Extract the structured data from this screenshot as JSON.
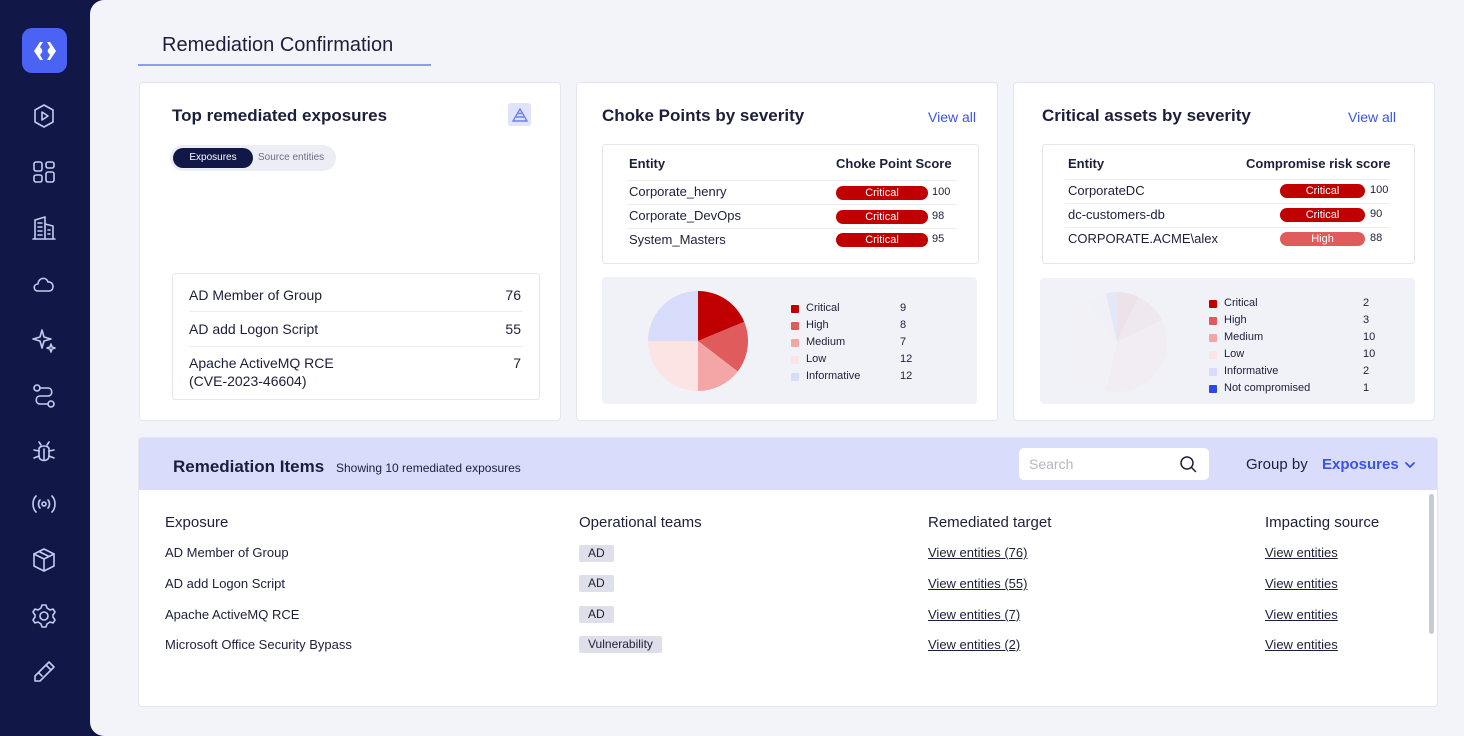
{
  "page": {
    "title": "Remediation Confirmation"
  },
  "sidebar": {
    "items": [
      {
        "icon": "play-circle-icon"
      },
      {
        "icon": "dashboard-grid-icon"
      },
      {
        "icon": "building-icon"
      },
      {
        "icon": "cloud-icon"
      },
      {
        "icon": "sparkle-icon"
      },
      {
        "icon": "route-icon"
      },
      {
        "icon": "bug-icon"
      },
      {
        "icon": "broadcast-icon"
      },
      {
        "icon": "box-icon"
      },
      {
        "icon": "gear-icon"
      },
      {
        "icon": "pen-icon"
      }
    ]
  },
  "top_exposures": {
    "title": "Top remediated exposures",
    "toggle": {
      "active": "Exposures",
      "inactive": "Source entities"
    },
    "items": [
      {
        "name": "AD Member of Group",
        "count": "76"
      },
      {
        "name": "AD add Logon Script",
        "count": "55"
      },
      {
        "name": "Apache ActiveMQ RCE",
        "name2": "(CVE-2023-46604)",
        "count": "7"
      }
    ]
  },
  "choke_points": {
    "title": "Choke Points by severity",
    "view_all": "View all",
    "col_entity": "Entity",
    "col_score": "Choke Point Score",
    "rows": [
      {
        "entity": "Corporate_henry",
        "severity": "Critical",
        "score": "100"
      },
      {
        "entity": "Corporate_DevOps",
        "severity": "Critical",
        "score": "98"
      },
      {
        "entity": "System_Masters",
        "severity": "Critical",
        "score": "95"
      }
    ]
  },
  "critical_assets": {
    "title": "Critical assets by severity",
    "view_all": "View all",
    "col_entity": "Entity",
    "col_score": "Compromise risk score",
    "rows": [
      {
        "entity": "CorporateDC",
        "severity": "Critical",
        "score": "100"
      },
      {
        "entity": "dc-customers-db",
        "severity": "Critical",
        "score": "90"
      },
      {
        "entity": "CORPORATE.ACME\\alex",
        "severity": "High",
        "score": "88"
      }
    ]
  },
  "colors": {
    "critical": "#c00000",
    "high": "#e05c5c",
    "medium": "#f4a6a6",
    "low": "#fde4e4",
    "informative": "#d8dcfb",
    "not_compromised": "#2c48e8"
  },
  "chart_data": [
    {
      "type": "pie",
      "series": [
        {
          "name": "Critical",
          "value": 9
        },
        {
          "name": "High",
          "value": 8
        },
        {
          "name": "Medium",
          "value": 7
        },
        {
          "name": "Low",
          "value": 12
        },
        {
          "name": "Informative",
          "value": 12
        }
      ]
    },
    {
      "type": "pie",
      "series": [
        {
          "name": "Critical",
          "value": 2
        },
        {
          "name": "High",
          "value": 3
        },
        {
          "name": "Medium",
          "value": 10
        },
        {
          "name": "Low",
          "value": 10
        },
        {
          "name": "Informative",
          "value": 2
        },
        {
          "name": "Not compromised",
          "value": 1
        }
      ]
    }
  ],
  "items": {
    "title": "Remediation Items",
    "subtitle": "Showing 10 remediated exposures",
    "search_placeholder": "Search",
    "group_by_label": "Group by",
    "group_by_value": "Exposures",
    "columns": [
      "Exposure",
      "Operational teams",
      "Remediated target",
      "Impacting source"
    ],
    "rows": [
      {
        "exposure": "AD Member of Group",
        "team": "AD",
        "target": "View entities (76)",
        "source": "View entities"
      },
      {
        "exposure": "AD add Logon Script",
        "team": "AD",
        "target": "View entities (55)",
        "source": "View entities"
      },
      {
        "exposure": "Apache ActiveMQ RCE",
        "team": "AD",
        "target": "View entities (7)",
        "source": "View entities"
      },
      {
        "exposure": "Microsoft Office Security Bypass",
        "team": "Vulnerability",
        "target": "View entities (2)",
        "source": "View entities"
      }
    ]
  }
}
